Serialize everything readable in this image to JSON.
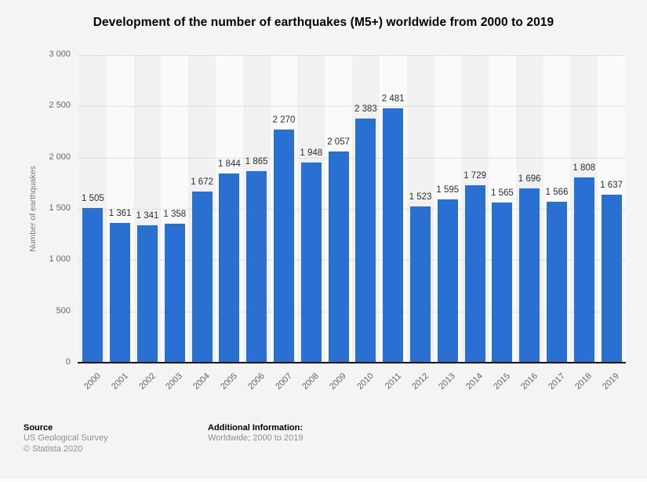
{
  "page": {
    "title": "Development of the number of earthquakes (M5+) worldwide from 2000 to 2019"
  },
  "chart_data": {
    "type": "bar",
    "title": "Development of the number of earthquakes (M5+) worldwide from 2000 to 2019",
    "categories": [
      "2000",
      "2001",
      "2002",
      "2003",
      "2004",
      "2005",
      "2006",
      "2007",
      "2008",
      "2009",
      "2010",
      "2011",
      "2012",
      "2013",
      "2014",
      "2015",
      "2016",
      "2017",
      "2018",
      "2019"
    ],
    "values": [
      1505,
      1361,
      1341,
      1358,
      1672,
      1844,
      1865,
      2270,
      1948,
      2057,
      2383,
      2481,
      1523,
      1595,
      1729,
      1565,
      1696,
      1566,
      1808,
      1637
    ],
    "value_labels": [
      "1 505",
      "1 361",
      "1 341",
      "1 358",
      "1 672",
      "1 844",
      "1 865",
      "2 270",
      "1 948",
      "2 057",
      "2 383",
      "2 481",
      "1 523",
      "1 595",
      "1 729",
      "1 565",
      "1 696",
      "1 566",
      "1 808",
      "1 637"
    ],
    "xlabel": "",
    "ylabel": "Number of earthquakes",
    "ylim": [
      0,
      3000
    ],
    "ytick_step": 500,
    "ytick_labels_top_to_bottom": [
      "3 000",
      "2 500",
      "2 000",
      "1 500",
      "1 000",
      "500",
      "0"
    ],
    "grid": "horizontal-dotted",
    "legend": "none",
    "bar_color": "#2a70d2"
  },
  "colors": {
    "background": "#f4f4f4",
    "stripe_even": "#f1f1f1",
    "stripe_odd": "#fafafa",
    "gridline": "#cbcbcb",
    "axis_line": "#161616",
    "bar": "#2a70d2",
    "value_label": "#2e2e2e",
    "tick_label": "#666666",
    "y_axis_title": "#7a7a7a",
    "footer_heading": "#000000",
    "footer_text": "#8f8f8f"
  },
  "footer": {
    "source_heading": "Source",
    "source_line1": "US Geological Survey",
    "source_line2": "© Statista 2020",
    "additional_heading": "Additional Information:",
    "additional_line1": "Worldwide; 2000 to 2019"
  }
}
